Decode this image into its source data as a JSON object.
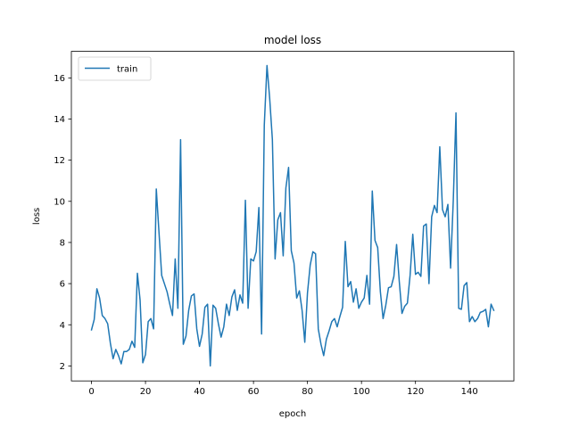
{
  "chart_data": {
    "type": "line",
    "title": "model loss",
    "xlabel": "epoch",
    "ylabel": "loss",
    "xlim": [
      -7.45,
      156.45
    ],
    "ylim": [
      1.27,
      17.29
    ],
    "xticks": [
      0,
      20,
      40,
      60,
      80,
      100,
      120,
      140
    ],
    "yticks": [
      2,
      4,
      6,
      8,
      10,
      12,
      14,
      16
    ],
    "grid": false,
    "legend": {
      "position": "upper left",
      "entries": [
        "train"
      ]
    },
    "series": [
      {
        "name": "train",
        "color": "#1f77b4",
        "x": [
          0,
          1,
          2,
          3,
          4,
          5,
          6,
          7,
          8,
          9,
          10,
          11,
          12,
          13,
          14,
          15,
          16,
          17,
          18,
          19,
          20,
          21,
          22,
          23,
          24,
          25,
          26,
          27,
          28,
          29,
          30,
          31,
          32,
          33,
          34,
          35,
          36,
          37,
          38,
          39,
          40,
          41,
          42,
          43,
          44,
          45,
          46,
          47,
          48,
          49,
          50,
          51,
          52,
          53,
          54,
          55,
          56,
          57,
          58,
          59,
          60,
          61,
          62,
          63,
          64,
          65,
          66,
          67,
          68,
          69,
          70,
          71,
          72,
          73,
          74,
          75,
          76,
          77,
          78,
          79,
          80,
          81,
          82,
          83,
          84,
          85,
          86,
          87,
          88,
          89,
          90,
          91,
          92,
          93,
          94,
          95,
          96,
          97,
          98,
          99,
          100,
          101,
          102,
          103,
          104,
          105,
          106,
          107,
          108,
          109,
          110,
          111,
          112,
          113,
          114,
          115,
          116,
          117,
          118,
          119,
          120,
          121,
          122,
          123,
          124,
          125,
          126,
          127,
          128,
          129,
          130,
          131,
          132,
          133,
          134,
          135,
          136,
          137,
          138,
          139,
          140,
          141,
          142,
          143,
          144,
          145,
          146,
          147,
          148,
          149
        ],
        "values": [
          3.75,
          4.25,
          5.75,
          5.3,
          4.45,
          4.3,
          4.05,
          3.1,
          2.35,
          2.8,
          2.5,
          2.1,
          2.7,
          2.7,
          2.8,
          3.2,
          2.9,
          6.5,
          5.2,
          2.15,
          2.55,
          4.15,
          4.3,
          3.8,
          10.6,
          8.5,
          6.4,
          6.0,
          5.6,
          5.0,
          4.45,
          7.2,
          4.8,
          13.0,
          3.05,
          3.45,
          4.7,
          5.4,
          5.5,
          3.8,
          2.95,
          3.55,
          4.85,
          5.0,
          2.0,
          4.95,
          4.8,
          4.05,
          3.4,
          3.9,
          5.0,
          4.45,
          5.35,
          5.7,
          4.7,
          5.45,
          5.05,
          10.05,
          4.8,
          7.2,
          7.1,
          7.55,
          9.7,
          3.55,
          13.7,
          16.6,
          15.0,
          13.0,
          7.2,
          9.1,
          9.45,
          7.35,
          10.65,
          11.65,
          7.6,
          7.0,
          5.3,
          5.65,
          4.7,
          3.15,
          5.55,
          6.9,
          7.55,
          7.45,
          3.8,
          3.05,
          2.5,
          3.3,
          3.7,
          4.15,
          4.3,
          3.9,
          4.4,
          4.85,
          8.05,
          5.85,
          6.1,
          5.1,
          5.75,
          4.8,
          5.1,
          5.3,
          6.4,
          5.0,
          10.5,
          8.1,
          7.75,
          5.6,
          4.3,
          4.95,
          5.8,
          5.85,
          6.35,
          7.9,
          6.1,
          4.55,
          4.9,
          5.05,
          6.4,
          8.4,
          6.45,
          6.55,
          6.35,
          8.8,
          8.9,
          6.0,
          9.25,
          9.8,
          9.45,
          12.65,
          9.6,
          9.25,
          9.85,
          6.75,
          10.05,
          14.3,
          4.8,
          4.75,
          5.9,
          6.05,
          4.15,
          4.4,
          4.15,
          4.3,
          4.6,
          4.65,
          4.75,
          3.9,
          5.0,
          4.7
        ]
      }
    ]
  }
}
